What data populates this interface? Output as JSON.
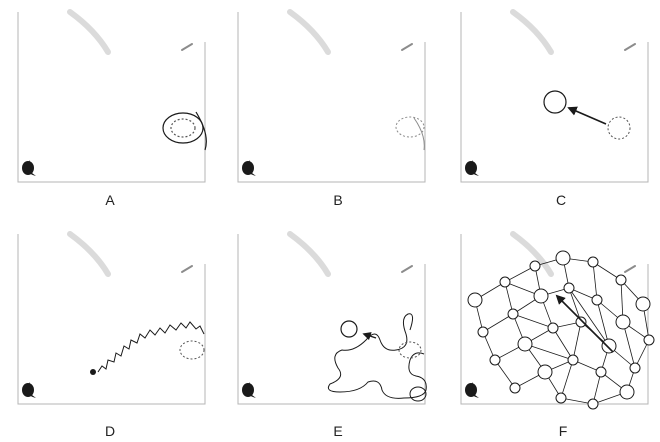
{
  "figure": {
    "panels": [
      {
        "label": "A"
      },
      {
        "label": "B"
      },
      {
        "label": "C"
      },
      {
        "label": "D"
      },
      {
        "label": "E"
      },
      {
        "label": "F"
      }
    ]
  },
  "colors": {
    "ink": "#1a1a1a",
    "faint": "#8c8c8c",
    "smudge": "#b8b8b8",
    "frame": "#b5b5b5",
    "background": "#ffffff"
  }
}
